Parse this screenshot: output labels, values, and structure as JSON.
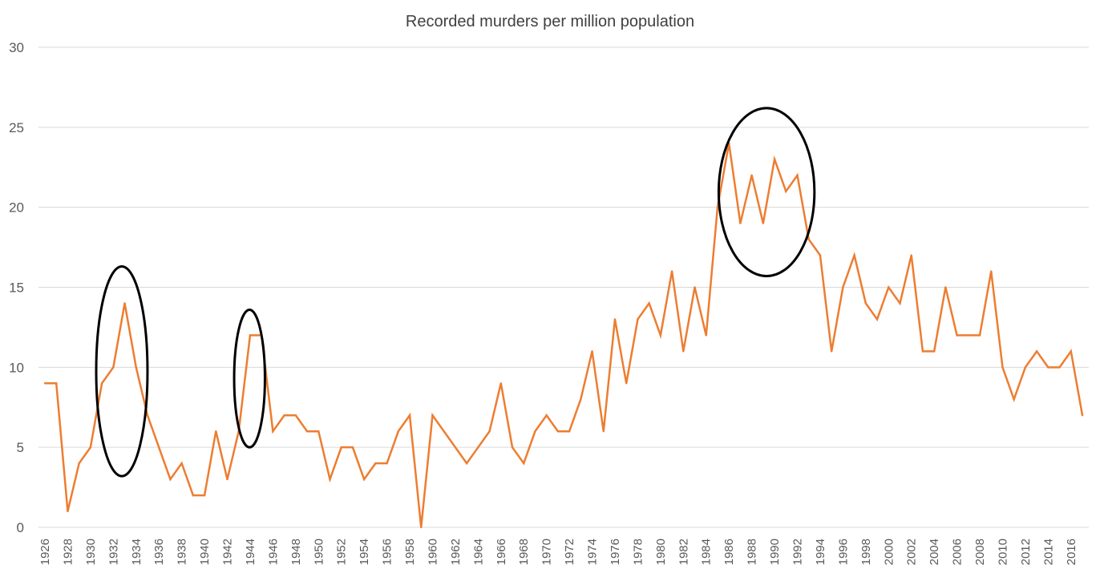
{
  "chart_data": {
    "type": "line",
    "title": "Recorded murders per million population",
    "xlabel": "",
    "ylabel": "",
    "ylim": [
      0,
      30
    ],
    "yticks": [
      "0",
      "5",
      "10",
      "15",
      "20",
      "25",
      "30"
    ],
    "grid": true,
    "legend": "none",
    "line_color": "#ED7D31",
    "annotation_color": "#000000",
    "x": [
      1926,
      1927,
      1928,
      1929,
      1930,
      1931,
      1932,
      1933,
      1934,
      1935,
      1936,
      1937,
      1938,
      1939,
      1940,
      1941,
      1942,
      1943,
      1944,
      1945,
      1946,
      1947,
      1948,
      1949,
      1950,
      1951,
      1952,
      1953,
      1954,
      1955,
      1956,
      1957,
      1958,
      1959,
      1960,
      1961,
      1962,
      1963,
      1964,
      1965,
      1966,
      1967,
      1968,
      1969,
      1970,
      1971,
      1972,
      1973,
      1974,
      1975,
      1976,
      1977,
      1978,
      1979,
      1980,
      1981,
      1982,
      1983,
      1984,
      1985,
      1986,
      1987,
      1988,
      1989,
      1990,
      1991,
      1992,
      1993,
      1994,
      1995,
      1996,
      1997,
      1998,
      1999,
      2000,
      2001,
      2002,
      2003,
      2004,
      2005,
      2006,
      2007,
      2008,
      2009,
      2010,
      2011,
      2012,
      2013,
      2014,
      2015,
      2016,
      2017
    ],
    "xtick_labels": [
      "1926",
      "1928",
      "1930",
      "1932",
      "1934",
      "1936",
      "1938",
      "1940",
      "1942",
      "1944",
      "1946",
      "1948",
      "1950",
      "1952",
      "1954",
      "1956",
      "1958",
      "1960",
      "1962",
      "1964",
      "1966",
      "1968",
      "1970",
      "1972",
      "1974",
      "1976",
      "1978",
      "1980",
      "1982",
      "1984",
      "1986",
      "1988",
      "1990",
      "1992",
      "1994",
      "1996",
      "1998",
      "2000",
      "2002",
      "2004",
      "2006",
      "2008",
      "2010",
      "2012",
      "2014",
      "2016"
    ],
    "series": [
      {
        "name": "Recorded murders per million population",
        "values": [
          9,
          9,
          1,
          4,
          5,
          9,
          10,
          14,
          10,
          7,
          5,
          3,
          4,
          2,
          2,
          6,
          3,
          6,
          12,
          12,
          6,
          7,
          7,
          6,
          6,
          3,
          5,
          5,
          3,
          4,
          4,
          6,
          7,
          0,
          7,
          6,
          5,
          4,
          5,
          6,
          9,
          5,
          4,
          6,
          7,
          6,
          6,
          8,
          11,
          6,
          13,
          9,
          13,
          14,
          12,
          16,
          11,
          15,
          12,
          20,
          24,
          19,
          22,
          19,
          23,
          21,
          22,
          18,
          17,
          11,
          15,
          17,
          14,
          13,
          15,
          14,
          17,
          11,
          11,
          15,
          12,
          12,
          12,
          16,
          10,
          8,
          10,
          11,
          10,
          10,
          11,
          7
        ]
      }
    ],
    "annotations": [
      {
        "shape": "ellipse",
        "x_from": 1930.5,
        "x_to": 1935.0,
        "y_from": 3.2,
        "y_to": 16.3
      },
      {
        "shape": "ellipse",
        "x_from": 1942.6,
        "x_to": 1945.3,
        "y_from": 5.0,
        "y_to": 13.6
      },
      {
        "shape": "ellipse",
        "x_from": 1985.1,
        "x_to": 1993.5,
        "y_from": 15.7,
        "y_to": 26.2
      }
    ]
  }
}
